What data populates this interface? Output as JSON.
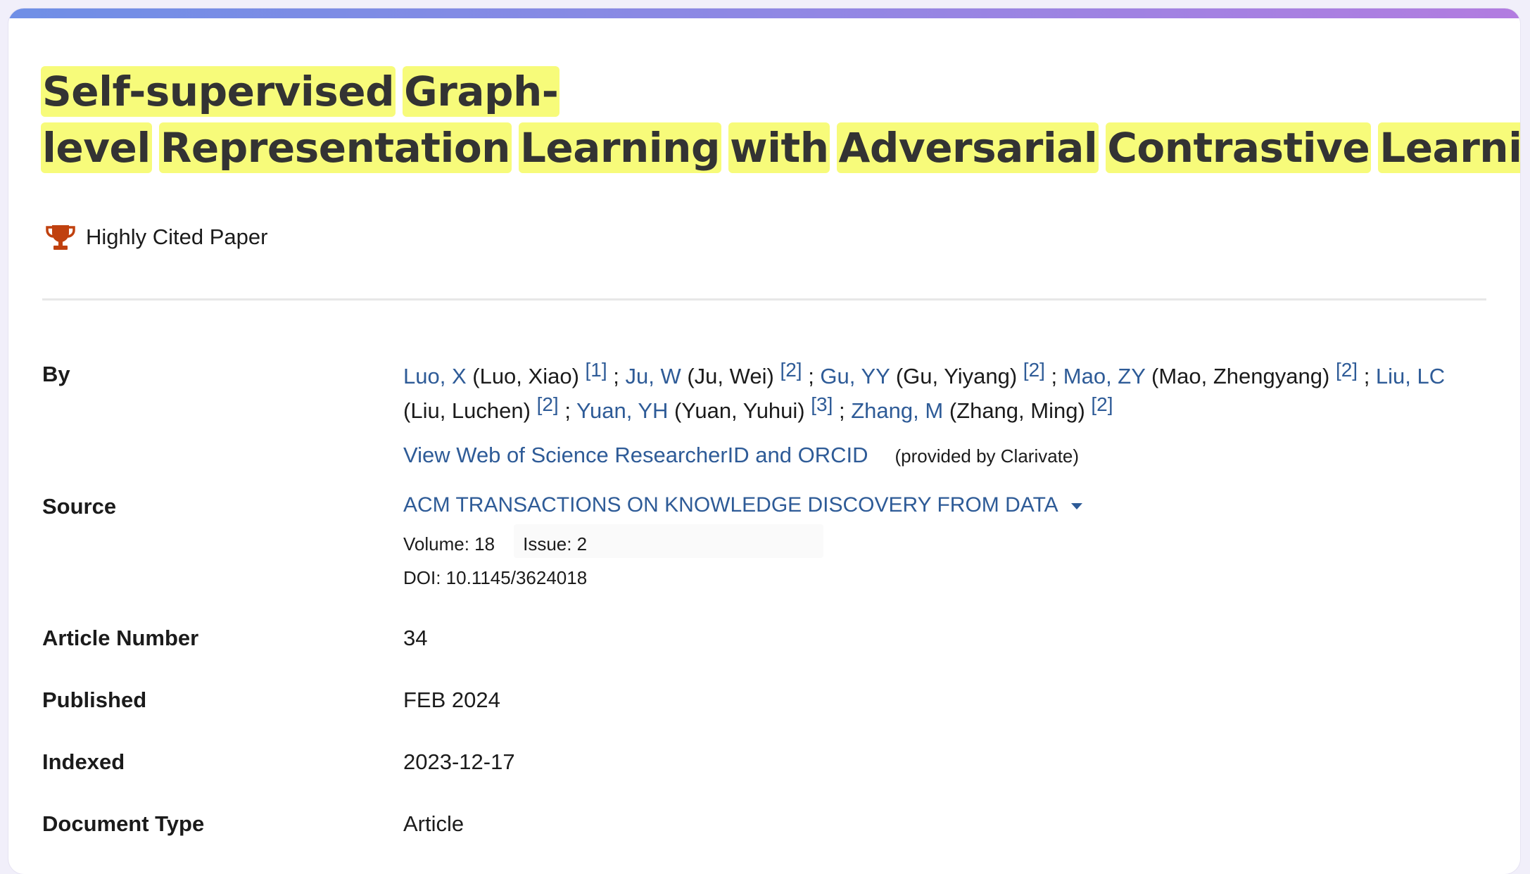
{
  "title_words": [
    "Self-supervised",
    "Graph-level",
    "Representation",
    "Learning",
    "with",
    "Adversarial",
    "Contrastive",
    "Learning"
  ],
  "badge": {
    "label": "Highly Cited Paper",
    "icon": "trophy-icon",
    "color": "#c0410f"
  },
  "colors": {
    "link": "#2e5b97",
    "highlight": "#f7fb7a",
    "accent_start": "#6f8fe6",
    "accent_end": "#b27ce0"
  },
  "by": {
    "label": "By",
    "authors": [
      {
        "short": "Luo, X",
        "full": "(Luo, Xiao)",
        "ref": "[1]"
      },
      {
        "short": "Ju, W",
        "full": "(Ju, Wei)",
        "ref": "[2]"
      },
      {
        "short": "Gu, YY",
        "full": "(Gu, Yiyang)",
        "ref": "[2]"
      },
      {
        "short": "Mao, ZY",
        "full": "(Mao, Zhengyang)",
        "ref": "[2]"
      },
      {
        "short": "Liu, LC",
        "full": "(Liu, Luchen)",
        "ref": "[2]"
      },
      {
        "short": "Yuan, YH",
        "full": "(Yuan, Yuhui)",
        "ref": "[3]"
      },
      {
        "short": "Zhang, M",
        "full": "(Zhang, Ming)",
        "ref": "[2]"
      }
    ],
    "separator": " ; ",
    "researcher_link": "View Web of Science ResearcherID and ORCID",
    "provided_by": "(provided by Clarivate)"
  },
  "source": {
    "label": "Source",
    "journal": "ACM TRANSACTIONS ON KNOWLEDGE DISCOVERY FROM DATA",
    "volume": "Volume: 18",
    "issue": "Issue: 2",
    "doi": "DOI: 10.1145/3624018"
  },
  "fields": [
    {
      "label": "Article Number",
      "value": "34"
    },
    {
      "label": "Published",
      "value": "FEB 2024"
    },
    {
      "label": "Indexed",
      "value": "2023-12-17"
    },
    {
      "label": "Document Type",
      "value": "Article"
    }
  ]
}
